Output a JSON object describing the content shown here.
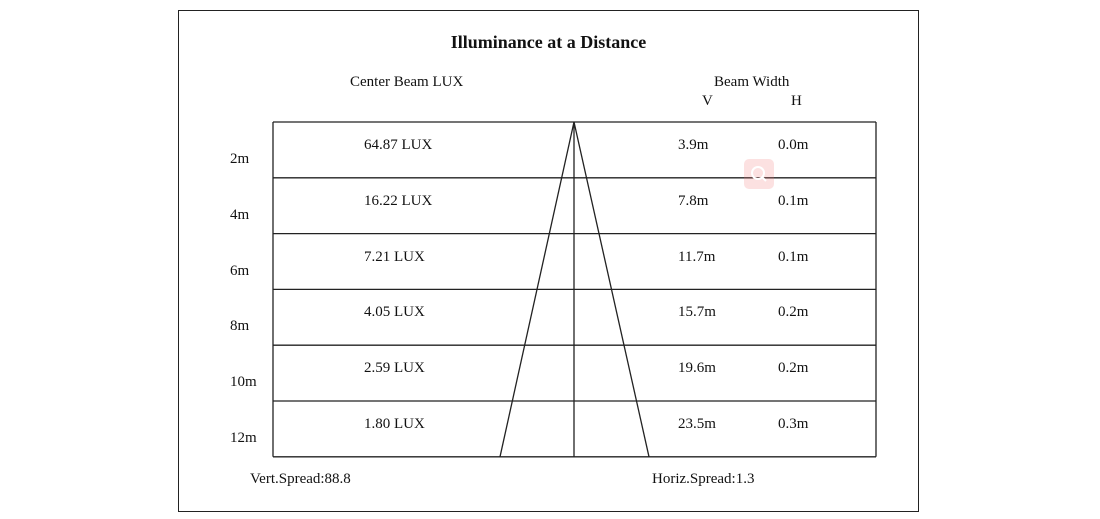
{
  "title": "Illuminance at a Distance",
  "center_beam_header": "Center Beam LUX",
  "beam_width_header": "Beam Width",
  "v_header": "V",
  "h_header": "H",
  "rows": [
    {
      "distance": "2m",
      "lux": "64.87 LUX",
      "v": "3.9m",
      "h": "0.0m"
    },
    {
      "distance": "4m",
      "lux": "16.22 LUX",
      "v": "7.8m",
      "h": "0.1m"
    },
    {
      "distance": "6m",
      "lux": "7.21 LUX",
      "v": "11.7m",
      "h": "0.1m"
    },
    {
      "distance": "8m",
      "lux": "4.05 LUX",
      "v": "15.7m",
      "h": "0.2m"
    },
    {
      "distance": "10m",
      "lux": "2.59 LUX",
      "v": "19.6m",
      "h": "0.2m"
    },
    {
      "distance": "12m",
      "lux": "1.80 LUX",
      "v": "23.5m",
      "h": "0.3m"
    }
  ],
  "vert_spread": "Vert.Spread:88.8",
  "horiz_spread": "Horiz.Spread:1.3",
  "overlay_icon": "zoom-icon"
}
